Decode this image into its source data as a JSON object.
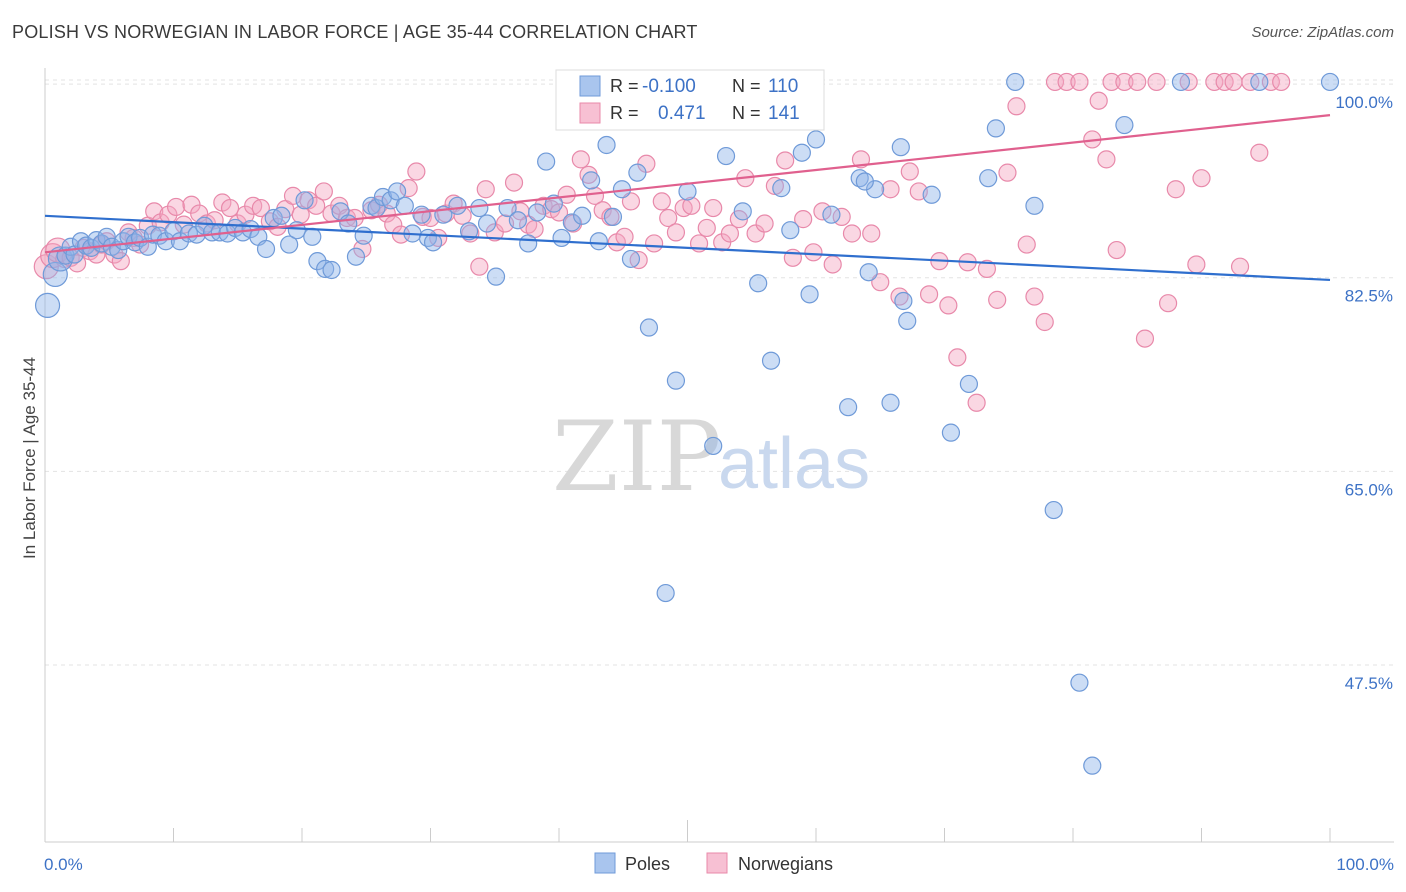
{
  "title": "POLISH VS NORWEGIAN IN LABOR FORCE | AGE 35-44 CORRELATION CHART",
  "source": "Source: ZipAtlas.com",
  "watermark": {
    "zip": "ZIP",
    "atlas": "atlas"
  },
  "chart_data": {
    "type": "scatter",
    "title": "POLISH VS NORWEGIAN IN LABOR FORCE | AGE 35-44 CORRELATION CHART",
    "ylabel": "In Labor Force | Age 35-44",
    "xlim": [
      0,
      100
    ],
    "ylim": [
      31.5,
      102
    ],
    "y_ticks": [
      {
        "value": 100.0,
        "label": "100.0%"
      },
      {
        "value": 82.5,
        "label": "82.5%"
      },
      {
        "value": 65.0,
        "label": "65.0%"
      },
      {
        "value": 47.5,
        "label": "47.5%"
      }
    ],
    "x_tick_labels": {
      "left": "0.0%",
      "right": "100.0%"
    },
    "grid": true,
    "legend_position": "bottom-center",
    "colors": {
      "poles": "#8fb4e8",
      "poles_line": "#2f6fce",
      "norwegians": "#f3a6c1",
      "norwegians_line": "#e0608e"
    },
    "stats_box": [
      {
        "r_label": "R =",
        "r_value": "-0.100",
        "n_label": "N =",
        "n_value": "110"
      },
      {
        "r_label": "R =",
        "r_value": "0.471",
        "n_label": "N =",
        "n_value": "141"
      }
    ],
    "series": [
      {
        "name": "Poles",
        "trend": {
          "x": [
            0,
            100
          ],
          "y": [
            88.1,
            82.3
          ]
        },
        "points": [
          [
            0.2,
            80.0
          ],
          [
            0.8,
            82.8
          ],
          [
            1.2,
            84.2
          ],
          [
            1.6,
            84.5
          ],
          [
            2.0,
            85.3
          ],
          [
            2.3,
            84.6
          ],
          [
            2.8,
            85.8
          ],
          [
            3.2,
            85.4
          ],
          [
            3.6,
            85.2
          ],
          [
            4.0,
            85.9
          ],
          [
            4.4,
            85.6
          ],
          [
            4.8,
            86.2
          ],
          [
            5.2,
            85.3
          ],
          [
            5.7,
            85.0
          ],
          [
            6.1,
            85.8
          ],
          [
            6.5,
            86.2
          ],
          [
            7.0,
            85.7
          ],
          [
            7.4,
            86.1
          ],
          [
            8.0,
            85.3
          ],
          [
            8.4,
            86.4
          ],
          [
            8.9,
            86.3
          ],
          [
            9.4,
            85.8
          ],
          [
            10.0,
            86.7
          ],
          [
            10.5,
            85.8
          ],
          [
            11.2,
            86.5
          ],
          [
            11.8,
            86.4
          ],
          [
            12.4,
            87.2
          ],
          [
            13.0,
            86.6
          ],
          [
            13.6,
            86.6
          ],
          [
            14.2,
            86.5
          ],
          [
            14.8,
            87.0
          ],
          [
            15.4,
            86.6
          ],
          [
            16.0,
            86.9
          ],
          [
            16.6,
            86.2
          ],
          [
            17.2,
            85.1
          ],
          [
            17.8,
            87.9
          ],
          [
            18.4,
            88.1
          ],
          [
            19.0,
            85.5
          ],
          [
            19.6,
            86.8
          ],
          [
            20.2,
            89.5
          ],
          [
            20.8,
            86.2
          ],
          [
            21.2,
            84.0
          ],
          [
            21.8,
            83.3
          ],
          [
            22.3,
            83.2
          ],
          [
            23.0,
            88.5
          ],
          [
            23.6,
            87.4
          ],
          [
            24.2,
            84.4
          ],
          [
            24.8,
            86.3
          ],
          [
            25.4,
            89.0
          ],
          [
            25.8,
            88.8
          ],
          [
            26.3,
            89.8
          ],
          [
            26.9,
            89.5
          ],
          [
            27.4,
            90.3
          ],
          [
            28.0,
            89.0
          ],
          [
            28.6,
            86.5
          ],
          [
            29.3,
            88.2
          ],
          [
            29.8,
            86.1
          ],
          [
            30.2,
            85.7
          ],
          [
            31.0,
            88.2
          ],
          [
            32.1,
            89.0
          ],
          [
            33.0,
            86.7
          ],
          [
            33.8,
            88.8
          ],
          [
            34.4,
            87.4
          ],
          [
            35.1,
            82.6
          ],
          [
            36.0,
            88.8
          ],
          [
            36.8,
            87.7
          ],
          [
            37.6,
            85.6
          ],
          [
            38.3,
            88.4
          ],
          [
            39.0,
            93.0
          ],
          [
            39.6,
            89.2
          ],
          [
            40.2,
            86.1
          ],
          [
            41.0,
            87.5
          ],
          [
            41.8,
            88.1
          ],
          [
            42.5,
            91.3
          ],
          [
            43.1,
            85.8
          ],
          [
            43.7,
            94.5
          ],
          [
            44.2,
            88.0
          ],
          [
            44.9,
            90.5
          ],
          [
            45.6,
            84.2
          ],
          [
            46.1,
            92.0
          ],
          [
            47.0,
            78.0
          ],
          [
            48.3,
            54.0
          ],
          [
            49.1,
            73.2
          ],
          [
            50.0,
            90.3
          ],
          [
            51.2,
            97.3
          ],
          [
            52.0,
            67.3
          ],
          [
            53.0,
            93.5
          ],
          [
            54.3,
            88.5
          ],
          [
            55.5,
            82.0
          ],
          [
            56.5,
            75.0
          ],
          [
            57.3,
            90.6
          ],
          [
            58.0,
            86.8
          ],
          [
            58.9,
            93.8
          ],
          [
            59.5,
            81.0
          ],
          [
            60.0,
            95.0
          ],
          [
            61.2,
            88.2
          ],
          [
            62.5,
            70.8
          ],
          [
            63.4,
            91.5
          ],
          [
            64.1,
            83.0
          ],
          [
            64.6,
            90.5
          ],
          [
            65.8,
            71.2
          ],
          [
            66.6,
            94.3
          ],
          [
            67.1,
            78.6
          ],
          [
            69.0,
            90.0
          ],
          [
            70.5,
            68.5
          ],
          [
            71.9,
            72.9
          ],
          [
            73.4,
            91.5
          ],
          [
            74.0,
            96.0
          ],
          [
            75.5,
            100.2
          ],
          [
            77.0,
            89.0
          ],
          [
            78.5,
            61.5
          ],
          [
            80.5,
            45.9
          ],
          [
            81.5,
            38.4
          ],
          [
            84.0,
            96.3
          ],
          [
            88.4,
            100.2
          ],
          [
            94.5,
            100.2
          ],
          [
            100.0,
            100.2
          ],
          [
            63.8,
            91.2
          ],
          [
            66.8,
            80.4
          ]
        ]
      },
      {
        "name": "Norwegians",
        "trend": {
          "x": [
            0,
            100
          ],
          "y": [
            84.8,
            97.2
          ]
        },
        "points": [
          [
            0.1,
            83.5
          ],
          [
            0.6,
            84.5
          ],
          [
            1.0,
            85.0
          ],
          [
            1.5,
            84.2
          ],
          [
            2.0,
            84.3
          ],
          [
            2.5,
            83.8
          ],
          [
            3.0,
            85.2
          ],
          [
            3.5,
            84.9
          ],
          [
            4.0,
            84.6
          ],
          [
            4.4,
            85.5
          ],
          [
            4.8,
            85.8
          ],
          [
            5.4,
            84.6
          ],
          [
            5.9,
            84.0
          ],
          [
            6.5,
            86.6
          ],
          [
            6.9,
            86.1
          ],
          [
            7.4,
            85.5
          ],
          [
            8.0,
            87.2
          ],
          [
            8.5,
            88.5
          ],
          [
            9.0,
            87.5
          ],
          [
            9.6,
            88.2
          ],
          [
            10.2,
            88.9
          ],
          [
            10.8,
            87.3
          ],
          [
            11.4,
            89.1
          ],
          [
            12.0,
            88.3
          ],
          [
            12.6,
            87.4
          ],
          [
            13.2,
            87.7
          ],
          [
            13.8,
            89.3
          ],
          [
            14.4,
            88.8
          ],
          [
            15.0,
            87.4
          ],
          [
            15.6,
            88.2
          ],
          [
            16.2,
            89.0
          ],
          [
            16.8,
            88.8
          ],
          [
            17.5,
            87.6
          ],
          [
            18.1,
            87.1
          ],
          [
            18.7,
            88.7
          ],
          [
            19.3,
            89.9
          ],
          [
            19.9,
            88.2
          ],
          [
            20.5,
            89.5
          ],
          [
            21.1,
            89.0
          ],
          [
            21.7,
            90.3
          ],
          [
            22.3,
            88.3
          ],
          [
            22.9,
            89.0
          ],
          [
            23.5,
            87.9
          ],
          [
            24.1,
            87.9
          ],
          [
            24.7,
            85.1
          ],
          [
            25.4,
            88.6
          ],
          [
            26.0,
            89.1
          ],
          [
            26.6,
            88.3
          ],
          [
            27.1,
            87.3
          ],
          [
            27.7,
            86.4
          ],
          [
            28.3,
            90.6
          ],
          [
            28.9,
            92.1
          ],
          [
            29.4,
            88.0
          ],
          [
            30.0,
            87.9
          ],
          [
            30.6,
            86.1
          ],
          [
            31.2,
            88.3
          ],
          [
            31.8,
            89.2
          ],
          [
            32.5,
            88.1
          ],
          [
            33.1,
            86.5
          ],
          [
            33.8,
            83.5
          ],
          [
            34.3,
            90.5
          ],
          [
            35.0,
            86.6
          ],
          [
            35.8,
            87.4
          ],
          [
            36.5,
            91.1
          ],
          [
            37.0,
            88.5
          ],
          [
            37.6,
            87.3
          ],
          [
            38.1,
            86.9
          ],
          [
            38.8,
            89.0
          ],
          [
            39.4,
            88.7
          ],
          [
            40.0,
            88.4
          ],
          [
            40.6,
            90.0
          ],
          [
            41.1,
            87.4
          ],
          [
            41.7,
            93.2
          ],
          [
            42.3,
            91.8
          ],
          [
            42.8,
            89.9
          ],
          [
            43.4,
            88.6
          ],
          [
            44.0,
            88.0
          ],
          [
            44.5,
            85.7
          ],
          [
            45.1,
            86.2
          ],
          [
            45.6,
            89.4
          ],
          [
            46.2,
            84.1
          ],
          [
            46.8,
            92.8
          ],
          [
            47.4,
            85.6
          ],
          [
            48.0,
            89.4
          ],
          [
            48.5,
            87.9
          ],
          [
            49.1,
            86.6
          ],
          [
            49.7,
            88.8
          ],
          [
            50.3,
            89.0
          ],
          [
            50.9,
            85.6
          ],
          [
            51.5,
            87.0
          ],
          [
            52.0,
            88.8
          ],
          [
            52.7,
            85.7
          ],
          [
            53.3,
            86.5
          ],
          [
            54.0,
            87.8
          ],
          [
            54.5,
            91.5
          ],
          [
            55.3,
            86.5
          ],
          [
            56.0,
            87.4
          ],
          [
            56.8,
            90.8
          ],
          [
            57.6,
            93.1
          ],
          [
            58.2,
            84.3
          ],
          [
            59.0,
            87.8
          ],
          [
            59.8,
            84.8
          ],
          [
            60.5,
            88.5
          ],
          [
            61.3,
            83.7
          ],
          [
            62.0,
            88.0
          ],
          [
            62.8,
            86.5
          ],
          [
            63.5,
            93.2
          ],
          [
            64.3,
            86.5
          ],
          [
            65.0,
            82.1
          ],
          [
            65.8,
            90.5
          ],
          [
            66.5,
            80.8
          ],
          [
            67.3,
            92.1
          ],
          [
            68.0,
            90.3
          ],
          [
            68.8,
            81.0
          ],
          [
            69.6,
            84.0
          ],
          [
            70.3,
            80.0
          ],
          [
            71.0,
            75.3
          ],
          [
            71.8,
            83.9
          ],
          [
            72.5,
            71.2
          ],
          [
            73.3,
            83.3
          ],
          [
            74.1,
            80.5
          ],
          [
            74.9,
            92.0
          ],
          [
            75.6,
            98.0
          ],
          [
            76.4,
            85.5
          ],
          [
            77.0,
            80.8
          ],
          [
            77.8,
            78.5
          ],
          [
            78.6,
            100.2
          ],
          [
            79.5,
            100.2
          ],
          [
            80.5,
            100.2
          ],
          [
            81.5,
            95.0
          ],
          [
            82.0,
            98.5
          ],
          [
            82.6,
            93.2
          ],
          [
            83.0,
            100.2
          ],
          [
            83.4,
            85.0
          ],
          [
            84.0,
            100.2
          ],
          [
            85.0,
            100.2
          ],
          [
            85.6,
            77.0
          ],
          [
            86.5,
            100.2
          ],
          [
            87.4,
            80.2
          ],
          [
            88.0,
            90.5
          ],
          [
            89.0,
            100.2
          ],
          [
            89.6,
            83.7
          ],
          [
            90.0,
            91.5
          ],
          [
            91.0,
            100.2
          ],
          [
            91.8,
            100.2
          ],
          [
            92.5,
            100.2
          ],
          [
            93.0,
            83.5
          ],
          [
            93.8,
            100.2
          ],
          [
            94.5,
            93.8
          ],
          [
            95.4,
            100.2
          ],
          [
            96.2,
            100.2
          ]
        ]
      }
    ]
  }
}
